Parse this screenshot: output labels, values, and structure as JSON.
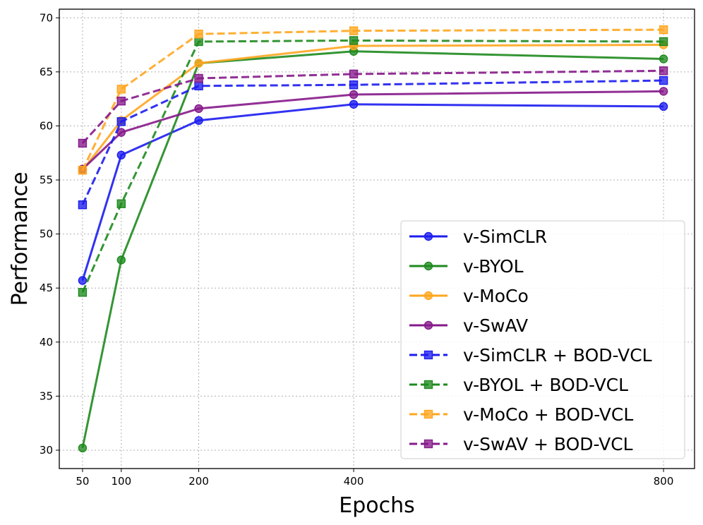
{
  "chart_data": {
    "type": "line",
    "title": "",
    "xlabel": "Epochs",
    "ylabel": "Performance",
    "x": [
      50,
      100,
      200,
      400,
      800
    ],
    "xticks": [
      "50",
      "100",
      "200",
      "400",
      "800"
    ],
    "yticks": [
      "30",
      "35",
      "40",
      "45",
      "50",
      "55",
      "60",
      "65",
      "70"
    ],
    "xlim": [
      20,
      840
    ],
    "ylim": [
      28.3,
      70.8
    ],
    "grid": true,
    "legend_position": "lower-right",
    "series": [
      {
        "name": "v-SimCLR",
        "color": "#1c1cf0",
        "style": "solid",
        "marker": "circle",
        "values": [
          45.7,
          57.3,
          60.5,
          62.0,
          61.8
        ]
      },
      {
        "name": "v-BYOL",
        "color": "#1e8a1e",
        "style": "solid",
        "marker": "circle",
        "values": [
          30.2,
          47.6,
          65.8,
          66.9,
          66.2
        ]
      },
      {
        "name": "v-MoCo",
        "color": "#ffa61f",
        "style": "solid",
        "marker": "circle",
        "values": [
          55.9,
          60.5,
          65.8,
          67.4,
          67.5
        ]
      },
      {
        "name": "v-SwAV",
        "color": "#861a8a",
        "style": "solid",
        "marker": "circle",
        "values": [
          56.0,
          59.4,
          61.6,
          62.9,
          63.2
        ]
      },
      {
        "name": "v-SimCLR + BOD-VCL",
        "color": "#1c1cf0",
        "style": "dashed",
        "marker": "square",
        "values": [
          52.7,
          60.4,
          63.7,
          63.8,
          64.2
        ]
      },
      {
        "name": "v-BYOL + BOD-VCL",
        "color": "#1e8a1e",
        "style": "dashed",
        "marker": "square",
        "values": [
          44.6,
          52.8,
          67.8,
          67.9,
          67.8
        ]
      },
      {
        "name": "v-MoCo + BOD-VCL",
        "color": "#ffa61f",
        "style": "dashed",
        "marker": "square",
        "values": [
          55.9,
          63.4,
          68.5,
          68.8,
          68.9
        ]
      },
      {
        "name": "v-SwAV + BOD-VCL",
        "color": "#861a8a",
        "style": "dashed",
        "marker": "square",
        "values": [
          58.4,
          62.3,
          64.4,
          64.8,
          65.1
        ]
      }
    ]
  }
}
